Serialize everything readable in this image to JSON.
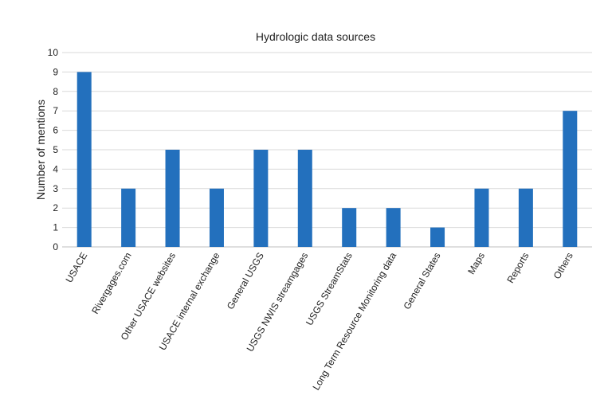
{
  "chart_data": {
    "type": "bar",
    "title": "Hydrologic data sources",
    "xlabel": "",
    "ylabel": "Number of mentions",
    "ylim": [
      0,
      10
    ],
    "yticks": [
      0,
      1,
      2,
      3,
      4,
      5,
      6,
      7,
      8,
      9,
      10
    ],
    "grid": true,
    "categories": [
      "USACE",
      "Rivergages.com",
      "Other USACE websites",
      "USACE internal exchange",
      "General USGS",
      "USGS NWIS streamgages",
      "USGS StreamStats",
      "Long Term Resource Monitoring data",
      "General States",
      "Maps",
      "Reports",
      "Others"
    ],
    "values": [
      9,
      3,
      5,
      3,
      5,
      5,
      2,
      2,
      1,
      3,
      3,
      7
    ],
    "bar_color": "#2370bd",
    "grid_color": "#d9d9d9"
  }
}
